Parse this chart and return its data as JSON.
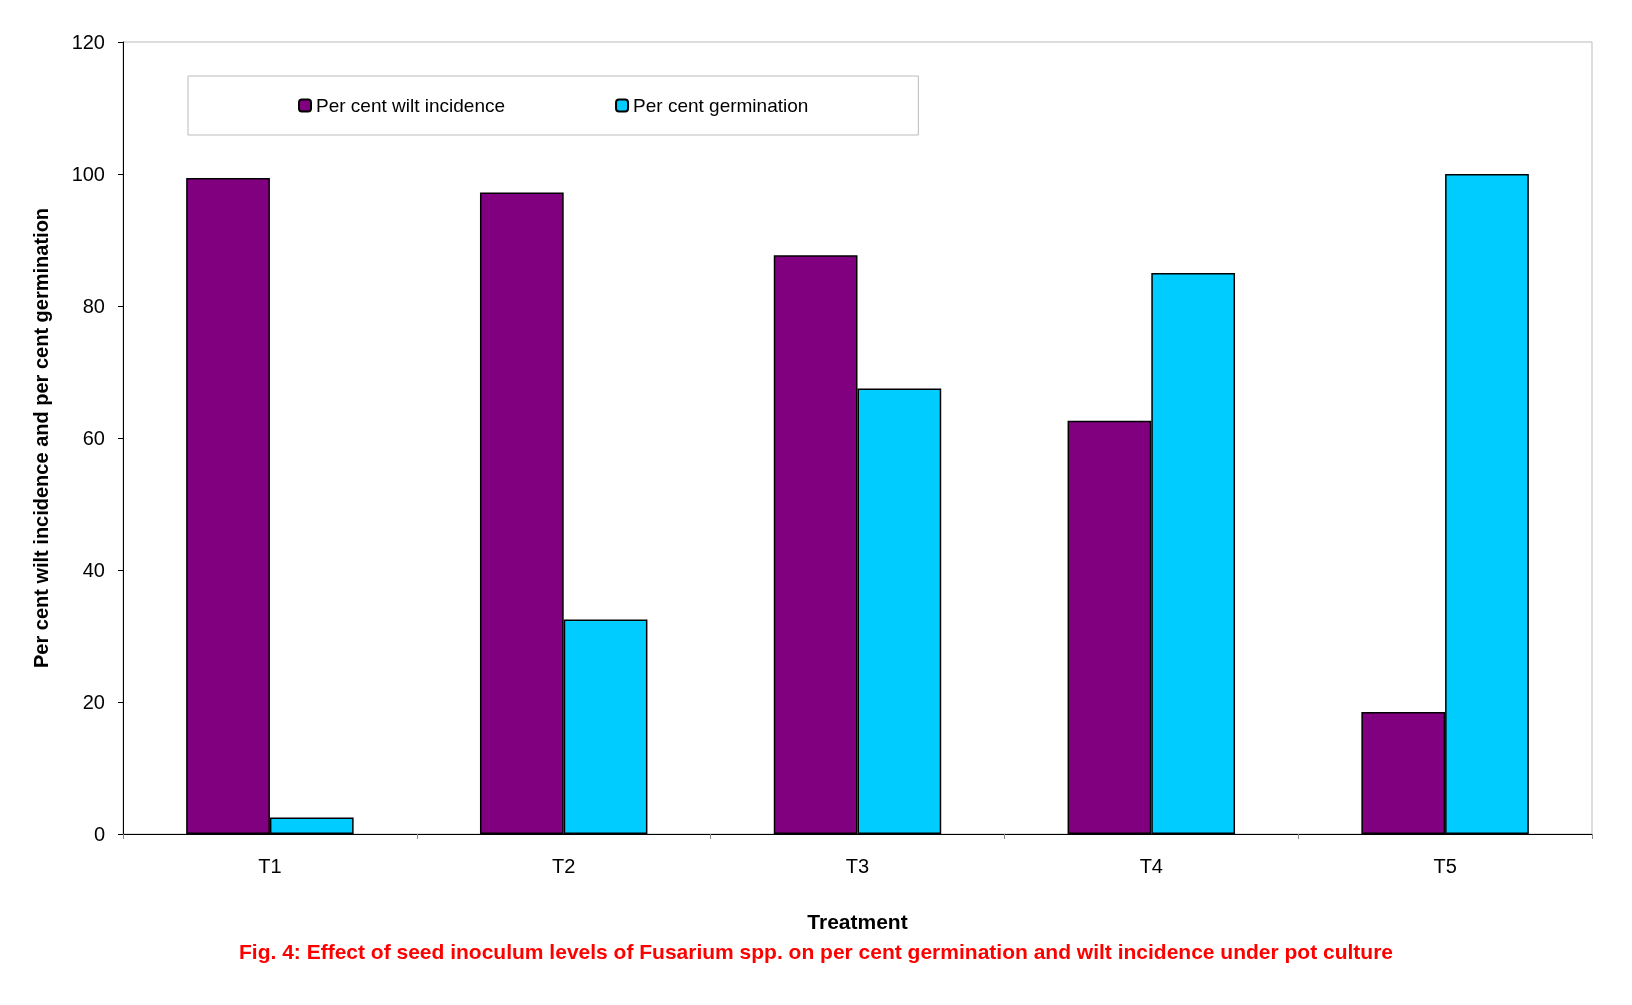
{
  "chart_data": {
    "type": "bar",
    "title": "Fig. 4: Effect of seed inoculum levels of Fusarium spp. on per cent germination and wilt incidence under pot culture",
    "xlabel": "Treatment",
    "ylabel": "Per cent wilt incidence and per cent germination",
    "categories": [
      "T1",
      "T2",
      "T3",
      "T4",
      "T5"
    ],
    "series": [
      {
        "name": "Per cent wilt incidence",
        "color": "#800080",
        "values": [
          99.4,
          97.2,
          87.7,
          62.6,
          18.5
        ]
      },
      {
        "name": "Per cent germination",
        "color": "#00ccff",
        "values": [
          2.5,
          32.5,
          67.5,
          85,
          100
        ]
      }
    ],
    "ylim": [
      0,
      120
    ],
    "yticks": [
      0,
      20,
      40,
      60,
      80,
      100,
      120
    ],
    "grid": false,
    "legend": "top"
  }
}
